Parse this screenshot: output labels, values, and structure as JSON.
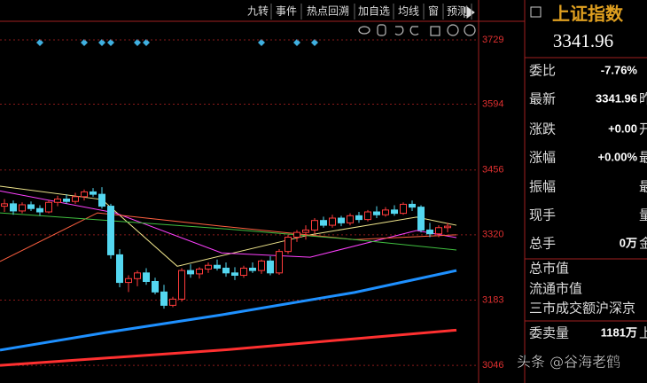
{
  "toolbar": [
    "九转",
    "事件",
    "热点回溯",
    "加自选",
    "均线",
    "窗",
    "预测"
  ],
  "chart": {
    "type": "candlestick",
    "ylim": [
      3009,
      3768
    ],
    "xlim": [
      -0.5,
      53.5
    ],
    "yticks": [
      3729,
      3594,
      3456,
      3320,
      3183,
      3046
    ],
    "up_color": "#ff3b3b",
    "down_color": "#54d7f0",
    "candles": [
      [
        3380,
        3395,
        3368,
        3385
      ],
      [
        3385,
        3392,
        3362,
        3370
      ],
      [
        3370,
        3388,
        3365,
        3383
      ],
      [
        3383,
        3390,
        3370,
        3375
      ],
      [
        3375,
        3382,
        3360,
        3368
      ],
      [
        3368,
        3392,
        3365,
        3388
      ],
      [
        3388,
        3402,
        3380,
        3395
      ],
      [
        3395,
        3405,
        3385,
        3390
      ],
      [
        3390,
        3408,
        3385,
        3400
      ],
      [
        3400,
        3415,
        3392,
        3410
      ],
      [
        3410,
        3418,
        3400,
        3405
      ],
      [
        3405,
        3420,
        3375,
        3380
      ],
      [
        3380,
        3385,
        3270,
        3278
      ],
      [
        3278,
        3290,
        3210,
        3220
      ],
      [
        3220,
        3235,
        3200,
        3228
      ],
      [
        3228,
        3245,
        3212,
        3240
      ],
      [
        3240,
        3250,
        3215,
        3222
      ],
      [
        3222,
        3230,
        3195,
        3200
      ],
      [
        3200,
        3215,
        3165,
        3172
      ],
      [
        3172,
        3190,
        3168,
        3185
      ],
      [
        3185,
        3250,
        3180,
        3245
      ],
      [
        3245,
        3258,
        3230,
        3238
      ],
      [
        3238,
        3252,
        3228,
        3248
      ],
      [
        3248,
        3262,
        3240,
        3256
      ],
      [
        3256,
        3268,
        3245,
        3250
      ],
      [
        3250,
        3262,
        3232,
        3240
      ],
      [
        3240,
        3252,
        3225,
        3235
      ],
      [
        3235,
        3255,
        3230,
        3250
      ],
      [
        3250,
        3262,
        3240,
        3245
      ],
      [
        3245,
        3268,
        3238,
        3265
      ],
      [
        3265,
        3275,
        3235,
        3240
      ],
      [
        3240,
        3290,
        3236,
        3285
      ],
      [
        3285,
        3320,
        3280,
        3315
      ],
      [
        3315,
        3330,
        3305,
        3325
      ],
      [
        3325,
        3340,
        3310,
        3330
      ],
      [
        3330,
        3355,
        3322,
        3350
      ],
      [
        3350,
        3358,
        3335,
        3340
      ],
      [
        3340,
        3362,
        3335,
        3355
      ],
      [
        3355,
        3360,
        3338,
        3345
      ],
      [
        3345,
        3365,
        3340,
        3360
      ],
      [
        3360,
        3368,
        3345,
        3352
      ],
      [
        3352,
        3372,
        3348,
        3368
      ],
      [
        3368,
        3380,
        3355,
        3362
      ],
      [
        3362,
        3378,
        3358,
        3372
      ],
      [
        3372,
        3382,
        3360,
        3365
      ],
      [
        3365,
        3388,
        3362,
        3384
      ],
      [
        3384,
        3392,
        3370,
        3378
      ],
      [
        3378,
        3382,
        3325,
        3330
      ],
      [
        3330,
        3345,
        3315,
        3322
      ],
      [
        3322,
        3340,
        3315,
        3335
      ],
      [
        3335,
        3345,
        3325,
        3338
      ]
    ],
    "lines": [
      {
        "color": "#1e90ff",
        "width": 3,
        "x": [
          -0.5,
          11.5,
          24.5,
          39.5,
          51
        ],
        "values": [
          3078,
          3115,
          3152,
          3199,
          3245
        ]
      },
      {
        "color": "#ff3030",
        "width": 3,
        "x": [
          -0.5,
          24.5,
          51
        ],
        "values": [
          3046,
          3078,
          3120
        ]
      },
      {
        "color": "#f0e68c",
        "width": 1,
        "x": [
          -0.5,
          11,
          19.5,
          34.5,
          46.5,
          51
        ],
        "values": [
          3422,
          3394,
          3254,
          3320,
          3357,
          3340
        ]
      },
      {
        "color": "#ff40ff",
        "width": 1,
        "x": [
          -0.5,
          12.5,
          24.5,
          34.5,
          46.5,
          51
        ],
        "values": [
          3412,
          3366,
          3282,
          3273,
          3329,
          3314
        ]
      },
      {
        "color": "#ff6040",
        "width": 1,
        "x": [
          -0.5,
          10.5,
          24.5,
          39.5,
          51
        ],
        "values": [
          3264,
          3366,
          3338,
          3310,
          3320
        ]
      },
      {
        "color": "#40c040",
        "width": 1,
        "x": [
          -0.5,
          24.5,
          39.5,
          51
        ],
        "values": [
          3366,
          3333,
          3310,
          3288
        ]
      }
    ]
  },
  "quote": {
    "name": "上证指数",
    "price": "3341.96",
    "rows": [
      {
        "label": "委比",
        "value": "-7.76%",
        "color": "#30e030"
      },
      {
        "label": "最新",
        "value": "3341.96",
        "tail": "昨"
      },
      {
        "label": "涨跌",
        "value": "+0.00",
        "tail": "开"
      },
      {
        "label": "涨幅",
        "value": "+0.00%",
        "tail": "最"
      },
      {
        "label": "振幅",
        "tail": "最"
      },
      {
        "label": "现手",
        "tail": "量"
      },
      {
        "label": "总手",
        "value": "0万",
        "tail": "金"
      },
      {
        "label": "总市值"
      },
      {
        "label": "流通市值"
      },
      {
        "label": "三市成交额沪深京"
      },
      {
        "label": "委卖量",
        "value": "1181万",
        "tail": "上",
        "color": "#54d7f0"
      }
    ]
  },
  "watermark": "头条 @谷海老鹤"
}
